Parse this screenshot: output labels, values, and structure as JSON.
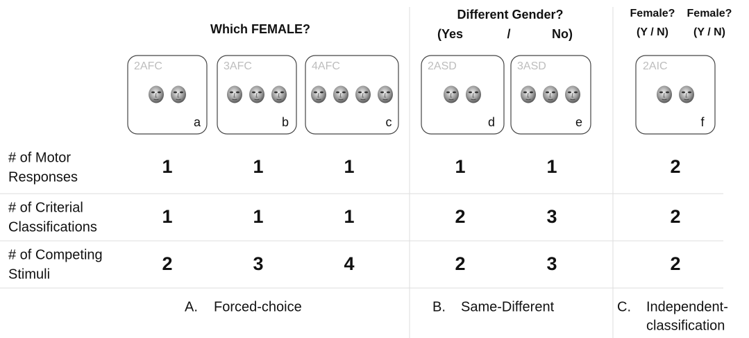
{
  "header": {
    "group_a": "Which FEMALE?",
    "group_b": {
      "title": "Different Gender?",
      "yes": "(Yes",
      "slash": "/",
      "no": "No)"
    },
    "group_c": {
      "q1": "Female?",
      "q2": "Female?",
      "yn1": "(Y / N)",
      "yn2": "(Y / N)"
    }
  },
  "panels": [
    {
      "label": "2AFC",
      "letter": "a"
    },
    {
      "label": "3AFC",
      "letter": "b"
    },
    {
      "label": "4AFC",
      "letter": "c"
    },
    {
      "label": "2ASD",
      "letter": "d"
    },
    {
      "label": "3ASD",
      "letter": "e"
    },
    {
      "label": "2AIC",
      "letter": "f"
    }
  ],
  "rows": [
    {
      "label": [
        "# of Motor",
        "Responses"
      ],
      "values": [
        1,
        1,
        1,
        1,
        1,
        2
      ]
    },
    {
      "label": [
        "# of Criterial",
        "Classifications"
      ],
      "values": [
        1,
        1,
        1,
        2,
        3,
        2
      ]
    },
    {
      "label": [
        "# of Competing",
        "Stimuli"
      ],
      "values": [
        2,
        3,
        4,
        2,
        3,
        2
      ]
    }
  ],
  "footer": [
    {
      "letter": "A.",
      "name": [
        "Forced-choice"
      ]
    },
    {
      "letter": "B.",
      "name": [
        "Same-Different"
      ]
    },
    {
      "letter": "C.",
      "name": [
        "Independent-",
        "classification"
      ]
    }
  ]
}
